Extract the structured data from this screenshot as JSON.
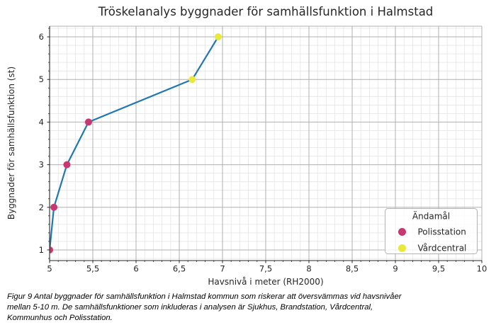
{
  "chart_data": {
    "type": "line",
    "title": "Tröskelanalys byggnader för samhällsfunktion i Halmstad",
    "xlabel": "Havsnivå i meter (RH2000)",
    "ylabel": "Byggnader för samhällsfunktion (st)",
    "xlim": [
      5,
      10
    ],
    "ylim": [
      0.75,
      6.25
    ],
    "x_ticks": {
      "values": [
        5,
        5.5,
        6,
        6.5,
        7,
        7.5,
        8,
        8.5,
        9,
        9.5,
        10
      ],
      "labels": [
        "5",
        "5,5",
        "6",
        "6,5",
        "7",
        "7,5",
        "8",
        "8,5",
        "9",
        "9,5",
        "10"
      ],
      "minor_step": 0.1
    },
    "y_ticks": {
      "values": [
        1,
        2,
        3,
        4,
        5,
        6
      ],
      "labels": [
        "1",
        "2",
        "3",
        "4",
        "5",
        "6"
      ],
      "minor_step": 0.2
    },
    "grid": {
      "major_color": "#b0b0b0",
      "minor_color": "#e4e4e4"
    },
    "line": {
      "color": "#2077b4",
      "width": 2.2
    },
    "series": [
      {
        "name": "Polisstation",
        "color": "#c5396f",
        "points": [
          [
            5.0,
            1
          ],
          [
            5.05,
            2
          ],
          [
            5.2,
            3
          ],
          [
            5.45,
            4
          ]
        ]
      },
      {
        "name": "Vårdcentral",
        "color": "#e9e93c",
        "points": [
          [
            6.65,
            5
          ],
          [
            6.95,
            6
          ]
        ]
      }
    ],
    "legend": {
      "title": "Ändamål",
      "position": "lower right",
      "entries": [
        "Polisstation",
        "Vårdcentral"
      ]
    }
  },
  "caption": {
    "lines": [
      "Figur 9 Antal byggnader för samhällsfunktion i Halmstad kommun som riskerar att översvämmas vid havsnivåer",
      "mellan 5-10 m. De samhällsfunktioner som inkluderas i analysen är Sjukhus, Brandstation, Vårdcentral,",
      "Kommunhus och Polisstation."
    ]
  }
}
